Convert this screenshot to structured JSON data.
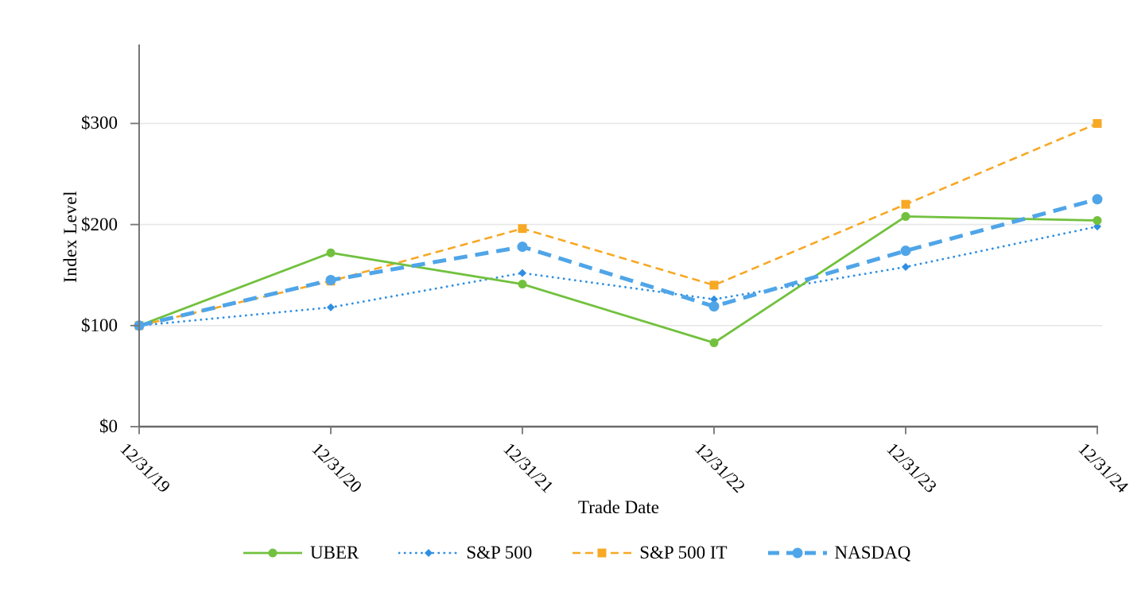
{
  "chart_data": {
    "type": "line",
    "title": "",
    "xlabel": "Trade Date",
    "ylabel": "Index Level",
    "x": [
      "12/31/19",
      "12/31/20",
      "12/31/21",
      "12/31/22",
      "12/31/23",
      "12/31/24"
    ],
    "yticks": [
      {
        "label": "$0",
        "value": 0
      },
      {
        "label": "$100",
        "value": 100
      },
      {
        "label": "$200",
        "value": 200
      },
      {
        "label": "$300",
        "value": 300
      }
    ],
    "ylim": [
      0,
      375
    ],
    "grid": "horizontal-only",
    "legend_position": "bottom",
    "series": [
      {
        "name": "UBER",
        "color": "#72C13E",
        "style": "solid",
        "marker": "circle",
        "marker_size": 11,
        "values": [
          100,
          172,
          141,
          83,
          208,
          204
        ]
      },
      {
        "name": "S&P 500",
        "color": "#2E8FE2",
        "style": "dotted",
        "marker": "diamond",
        "marker_size": 10,
        "values": [
          100,
          118,
          152,
          126,
          158,
          198
        ]
      },
      {
        "name": "S&P 500 IT",
        "color": "#F7A824",
        "style": "dashed",
        "marker": "square",
        "marker_size": 11,
        "values": [
          100,
          144,
          196,
          140,
          220,
          300
        ]
      },
      {
        "name": "NASDAQ",
        "color": "#4FA5E8",
        "style": "long-dash-thick",
        "marker": "circle",
        "marker_size": 13,
        "values": [
          100,
          145,
          178,
          119,
          174,
          225
        ]
      }
    ],
    "colors": {
      "axis": "#757575",
      "grid": "#E8E8E8",
      "text": "#000000"
    }
  }
}
